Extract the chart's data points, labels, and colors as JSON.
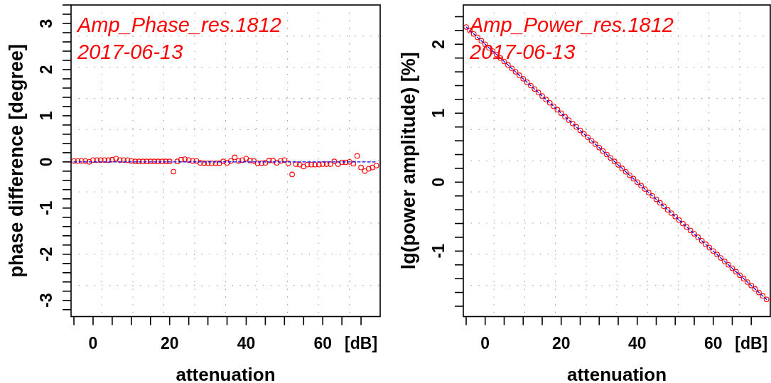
{
  "chart_data": [
    {
      "type": "scatter",
      "title": "Amp_Phase_res.1812",
      "subtitle": "2017-06-13",
      "xlabel": "attenuation",
      "ylabel": "phase difference [degree]",
      "xlim": [
        -5.75,
        75
      ],
      "ylim": [
        -3.35,
        3.4
      ],
      "xticks": [
        {
          "value": -5,
          "label": null
        },
        0,
        {
          "value": 5,
          "label": null
        },
        {
          "value": 10,
          "label": null
        },
        {
          "value": 15,
          "label": null
        },
        20,
        {
          "value": 25,
          "label": null
        },
        {
          "value": 30,
          "label": null
        },
        {
          "value": 35,
          "label": null
        },
        40,
        {
          "value": 45,
          "label": null
        },
        {
          "value": 50,
          "label": null
        },
        {
          "value": 55,
          "label": null
        },
        60,
        {
          "value": 65,
          "label": null
        },
        {
          "value": 70,
          "label": "[dB]"
        }
      ],
      "yticks": [
        {
          "value": -3.2,
          "label": null
        },
        -3,
        {
          "value": -2.8,
          "label": null
        },
        {
          "value": -2.6,
          "label": null
        },
        {
          "value": -2.4,
          "label": null
        },
        {
          "value": -2.2,
          "label": null
        },
        -2,
        {
          "value": -1.8,
          "label": null
        },
        {
          "value": -1.6,
          "label": null
        },
        {
          "value": -1.4,
          "label": null
        },
        {
          "value": -1.2,
          "label": null
        },
        -1,
        {
          "value": -0.8,
          "label": null
        },
        {
          "value": -0.6,
          "label": null
        },
        {
          "value": -0.4,
          "label": null
        },
        {
          "value": -0.2,
          "label": null
        },
        0,
        {
          "value": 0.2,
          "label": null
        },
        {
          "value": 0.4,
          "label": null
        },
        {
          "value": 0.6,
          "label": null
        },
        {
          "value": 0.8,
          "label": null
        },
        1,
        {
          "value": 1.2,
          "label": null
        },
        {
          "value": 1.4,
          "label": null
        },
        {
          "value": 1.6,
          "label": null
        },
        {
          "value": 1.8,
          "label": null
        },
        2,
        {
          "value": 2.2,
          "label": null
        },
        {
          "value": 2.4,
          "label": null
        },
        {
          "value": 2.6,
          "label": null
        },
        {
          "value": 2.8,
          "label": null
        },
        3,
        {
          "value": 3.2,
          "label": null
        },
        {
          "value": 3.4,
          "label": null
        }
      ],
      "grid": true,
      "x": [
        -5,
        -4,
        -3,
        -2,
        -1,
        0,
        1,
        2,
        3,
        4,
        5,
        6,
        7,
        8,
        9,
        10,
        11,
        12,
        13,
        14,
        15,
        16,
        17,
        18,
        19,
        20,
        21,
        22,
        23,
        24,
        25,
        26,
        27,
        28,
        29,
        30,
        31,
        32,
        33,
        34,
        35,
        36,
        37,
        38,
        39,
        40,
        41,
        42,
        43,
        44,
        45,
        46,
        47,
        48,
        49,
        50,
        51,
        52,
        53,
        54,
        55,
        56,
        57,
        58,
        59,
        60,
        61,
        62,
        63,
        64,
        65,
        66,
        67,
        68,
        69,
        70,
        71,
        72,
        73,
        74
      ],
      "series": [
        {
          "color": "#ff0000",
          "marker": "circle",
          "values": [
            0.02,
            0.02,
            0.02,
            0.02,
            0.0,
            0.04,
            0.04,
            0.04,
            0.04,
            0.04,
            0.05,
            0.07,
            0.04,
            0.04,
            0.04,
            0.02,
            0.01,
            0.01,
            0.01,
            0.01,
            0.01,
            0.01,
            0.01,
            0.01,
            0.01,
            0.01,
            -0.21,
            0.01,
            0.05,
            0.06,
            0.04,
            0.02,
            0.02,
            -0.02,
            -0.03,
            -0.03,
            -0.03,
            -0.03,
            -0.03,
            0.01,
            -0.02,
            0.02,
            0.1,
            0.02,
            0.04,
            0.07,
            0.03,
            0.02,
            -0.03,
            -0.03,
            -0.02,
            0.03,
            0.03,
            -0.02,
            0.02,
            0.04,
            -0.03,
            -0.27,
            -0.05,
            -0.06,
            -0.1,
            -0.06,
            -0.06,
            -0.06,
            -0.06,
            -0.05,
            -0.05,
            -0.05,
            0.01,
            -0.05,
            -0.01,
            -0.01,
            0.0,
            -0.04,
            0.13,
            -0.12,
            -0.2,
            -0.15,
            -0.12,
            -0.08
          ]
        },
        {
          "type": "line",
          "color": "#0000ff",
          "line_style": "dashed",
          "values": [
            0,
            0,
            0,
            0,
            0,
            0,
            0,
            0,
            0,
            0,
            0,
            0,
            0,
            0,
            0,
            0,
            0,
            0,
            0,
            0,
            0,
            0,
            0,
            0,
            0,
            0,
            0,
            0,
            0,
            0,
            0,
            0,
            0,
            0,
            0,
            0,
            0,
            0,
            0,
            0,
            0,
            0,
            0,
            0,
            0,
            0,
            0,
            0,
            0,
            0,
            0,
            0,
            0,
            0,
            0,
            0,
            0,
            0,
            0,
            0,
            0,
            0,
            0,
            0,
            0,
            0,
            0,
            0,
            0,
            0,
            0,
            0,
            0,
            0,
            0,
            0,
            0,
            0,
            0,
            0
          ]
        }
      ]
    },
    {
      "type": "scatter",
      "title": "Amp_Power_res.1812",
      "subtitle": "2017-06-13",
      "xlabel": "attenuation",
      "ylabel": "lg(power amplitude) [%]",
      "xlim": [
        -5.75,
        75
      ],
      "ylim": [
        -1.95,
        2.57
      ],
      "xticks": [
        {
          "value": -5,
          "label": null
        },
        0,
        {
          "value": 5,
          "label": null
        },
        {
          "value": 10,
          "label": null
        },
        {
          "value": 15,
          "label": null
        },
        20,
        {
          "value": 25,
          "label": null
        },
        {
          "value": 30,
          "label": null
        },
        {
          "value": 35,
          "label": null
        },
        40,
        {
          "value": 45,
          "label": null
        },
        {
          "value": 50,
          "label": null
        },
        {
          "value": 55,
          "label": null
        },
        60,
        {
          "value": 65,
          "label": null
        },
        {
          "value": 70,
          "label": "[dB]"
        }
      ],
      "yticks": [
        {
          "value": -1.8,
          "label": null
        },
        {
          "value": -1.6,
          "label": null
        },
        {
          "value": -1.4,
          "label": null
        },
        {
          "value": -1.2,
          "label": null
        },
        -1,
        {
          "value": -0.8,
          "label": null
        },
        {
          "value": -0.6,
          "label": null
        },
        {
          "value": -0.4,
          "label": null
        },
        {
          "value": -0.2,
          "label": null
        },
        0,
        {
          "value": 0.2,
          "label": null
        },
        {
          "value": 0.4,
          "label": null
        },
        {
          "value": 0.6,
          "label": null
        },
        {
          "value": 0.8,
          "label": null
        },
        1,
        {
          "value": 1.2,
          "label": null
        },
        {
          "value": 1.4,
          "label": null
        },
        {
          "value": 1.6,
          "label": null
        },
        {
          "value": 1.8,
          "label": null
        },
        2,
        {
          "value": 2.2,
          "label": null
        },
        {
          "value": 2.4,
          "label": null
        }
      ],
      "grid": true,
      "x": [
        -5,
        -4,
        -3,
        -2,
        -1,
        0,
        1,
        2,
        3,
        4,
        5,
        6,
        7,
        8,
        9,
        10,
        11,
        12,
        13,
        14,
        15,
        16,
        17,
        18,
        19,
        20,
        21,
        22,
        23,
        24,
        25,
        26,
        27,
        28,
        29,
        30,
        31,
        32,
        33,
        34,
        35,
        36,
        37,
        38,
        39,
        40,
        41,
        42,
        43,
        44,
        45,
        46,
        47,
        48,
        49,
        50,
        51,
        52,
        53,
        54,
        55,
        56,
        57,
        58,
        59,
        60,
        61,
        62,
        63,
        64,
        65,
        66,
        67,
        68,
        69,
        70,
        71,
        72,
        73,
        74
      ],
      "series": [
        {
          "color": "#ff0000",
          "marker": "circle",
          "values": [
            2.25,
            2.2,
            2.15,
            2.1,
            2.05,
            2,
            1.95,
            1.9,
            1.85,
            1.8,
            1.75,
            1.7,
            1.65,
            1.6,
            1.55,
            1.5,
            1.45,
            1.4,
            1.35,
            1.3,
            1.25,
            1.2,
            1.15,
            1.1,
            1.05,
            1,
            0.95,
            0.9,
            0.85,
            0.8,
            0.75,
            0.7,
            0.65,
            0.6,
            0.55,
            0.5,
            0.45,
            0.4,
            0.35,
            0.3,
            0.25,
            0.2,
            0.15,
            0.1,
            0.05,
            0,
            -0.05,
            -0.1,
            -0.15,
            -0.2,
            -0.25,
            -0.3,
            -0.35,
            -0.4,
            -0.45,
            -0.5,
            -0.55,
            -0.6,
            -0.65,
            -0.7,
            -0.75,
            -0.8,
            -0.85,
            -0.9,
            -0.95,
            -1,
            -1.05,
            -1.1,
            -1.15,
            -1.2,
            -1.25,
            -1.3,
            -1.35,
            -1.4,
            -1.45,
            -1.5,
            -1.55,
            -1.6,
            -1.65,
            -1.7
          ]
        },
        {
          "type": "line",
          "color": "#0000ff",
          "line_style": "dashed",
          "values": [
            2.25,
            2.2,
            2.15,
            2.1,
            2.05,
            2,
            1.95,
            1.9,
            1.85,
            1.8,
            1.75,
            1.7,
            1.65,
            1.6,
            1.55,
            1.5,
            1.45,
            1.4,
            1.35,
            1.3,
            1.25,
            1.2,
            1.15,
            1.1,
            1.05,
            1,
            0.95,
            0.9,
            0.85,
            0.8,
            0.75,
            0.7,
            0.65,
            0.6,
            0.55,
            0.5,
            0.45,
            0.4,
            0.35,
            0.3,
            0.25,
            0.2,
            0.15,
            0.1,
            0.05,
            0,
            -0.05,
            -0.1,
            -0.15,
            -0.2,
            -0.25,
            -0.3,
            -0.35,
            -0.4,
            -0.45,
            -0.5,
            -0.55,
            -0.6,
            -0.65,
            -0.7,
            -0.75,
            -0.8,
            -0.85,
            -0.9,
            -0.95,
            -1,
            -1.05,
            -1.1,
            -1.15,
            -1.2,
            -1.25,
            -1.3,
            -1.35,
            -1.4,
            -1.45,
            -1.5,
            -1.55,
            -1.6,
            -1.65,
            -1.7
          ]
        }
      ]
    }
  ]
}
